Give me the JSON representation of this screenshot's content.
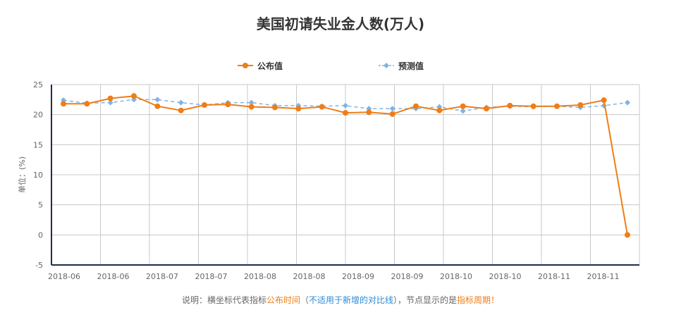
{
  "title": "美国初请失业金人数(万人)",
  "legend": {
    "published": "公布值",
    "forecast": "预测值"
  },
  "note": {
    "prefix": "说明：横坐标代表指标",
    "time": "公布时间",
    "paren_open": "（",
    "not_for_new": "不适用于新增的对比线",
    "paren_close": "）",
    "middle": "，节点显示的是",
    "period": "指标周期！"
  },
  "colors": {
    "published": "#f07d16",
    "forecast": "#7fb4e6",
    "grid": "#c8c8c8",
    "axis": "#1f2d4a"
  },
  "chart_data": {
    "type": "line",
    "title": "美国初请失业金人数(万人)",
    "ylabel": "单位：(%)",
    "xlabel": "",
    "ylim": [
      -5,
      25
    ],
    "yticks": [
      -5,
      0,
      5,
      10,
      15,
      20,
      25
    ],
    "grid": true,
    "legend_position": "top-center",
    "x_tick_labels": [
      "2018-06",
      "2018-06",
      "2018-07",
      "2018-07",
      "2018-08",
      "2018-08",
      "2018-09",
      "2018-09",
      "2018-10",
      "2018-10",
      "2018-11",
      "2018-11"
    ],
    "series": [
      {
        "name": "公布值",
        "style": "solid-circle",
        "values": [
          21.8,
          21.8,
          22.7,
          23.1,
          21.4,
          20.7,
          21.6,
          21.7,
          21.3,
          21.2,
          21.0,
          21.3,
          20.3,
          20.4,
          20.1,
          21.4,
          20.7,
          21.4,
          21.0,
          21.5,
          21.4,
          21.4,
          21.6,
          22.4,
          0
        ]
      },
      {
        "name": "预测值",
        "style": "dashed-diamond",
        "values": [
          22.4,
          21.9,
          22.0,
          22.5,
          22.5,
          22.0,
          21.6,
          22.0,
          22.0,
          21.5,
          21.5,
          21.4,
          21.5,
          21.0,
          21.0,
          21.0,
          21.3,
          20.6,
          21.2,
          21.4,
          21.3,
          21.4,
          21.2,
          21.5,
          22.0
        ]
      }
    ]
  }
}
